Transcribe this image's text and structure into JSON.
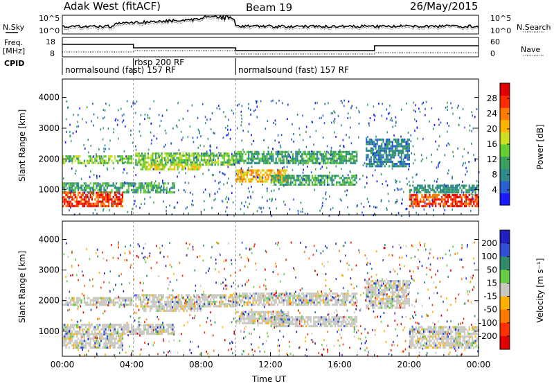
{
  "header": {
    "station": "Adak West (fitACF)",
    "beam": "Beam 19",
    "date": "26/May/2015"
  },
  "side_labels": {
    "nsky": "N.Sky",
    "freq_line1": "Freq.",
    "freq_line2": "[MHz]",
    "cpid": "CPID",
    "nsearch": "N.Search",
    "nave": "Nave"
  },
  "strip_ticks": {
    "noise_left": [
      "10^5",
      "10^0"
    ],
    "noise_right": [
      "10^5",
      "10^0"
    ],
    "freq_left": [
      "18",
      "8"
    ],
    "nave_right": [
      "60",
      "0"
    ]
  },
  "cpid_segments": [
    {
      "label": "normalsound (fast) 157 RF",
      "start_h": 0
    },
    {
      "label": "rbsp 200 RF",
      "start_h": 4.1
    },
    {
      "label": "normalsound (fast) 157 RF",
      "start_h": 10
    }
  ],
  "chart_data": [
    {
      "type": "heatmap",
      "quantity": "Power",
      "xlabel": "",
      "ylabel": "Slant Range [km]",
      "x_range_hours": [
        0,
        24
      ],
      "xticks": [
        "00:00",
        "04:00",
        "08:00",
        "12:00",
        "16:00",
        "20:00",
        "00:00"
      ],
      "ylim": [
        180,
        4600
      ],
      "yticks": [
        1000,
        2000,
        3000,
        4000
      ],
      "colorbar_label": "Power [dB]",
      "colorbar_ticks": [
        4,
        8,
        12,
        16,
        20,
        24,
        28
      ],
      "colorbar_range": [
        0,
        32
      ],
      "colorbar_colors": [
        "#1a1aff",
        "#2a5fd0",
        "#2e8a8a",
        "#3aa060",
        "#66cc33",
        "#ccdd22",
        "#ffb400",
        "#ff7a00",
        "#ff2a00",
        "#e00000"
      ]
    },
    {
      "type": "heatmap",
      "quantity": "Velocity",
      "xlabel": "Time UT",
      "ylabel": "Slant Range [km]",
      "x_range_hours": [
        0,
        24
      ],
      "xticks": [
        "00:00",
        "04:00",
        "08:00",
        "12:00",
        "16:00",
        "20:00",
        "00:00"
      ],
      "ylim": [
        180,
        4600
      ],
      "yticks": [
        1000,
        2000,
        3000,
        4000
      ],
      "colorbar_label": "Velocity [m s⁻¹]",
      "colorbar_ticks": [
        "200",
        "100",
        "50",
        "15",
        "-15",
        "-50",
        "-100",
        "-200"
      ],
      "colorbar_colors": [
        "#2020c0",
        "#3050d8",
        "#2f8a6a",
        "#66cc44",
        "#c8c8c0",
        "#ffb000",
        "#ff7a00",
        "#ff3000",
        "#e00000"
      ]
    }
  ]
}
